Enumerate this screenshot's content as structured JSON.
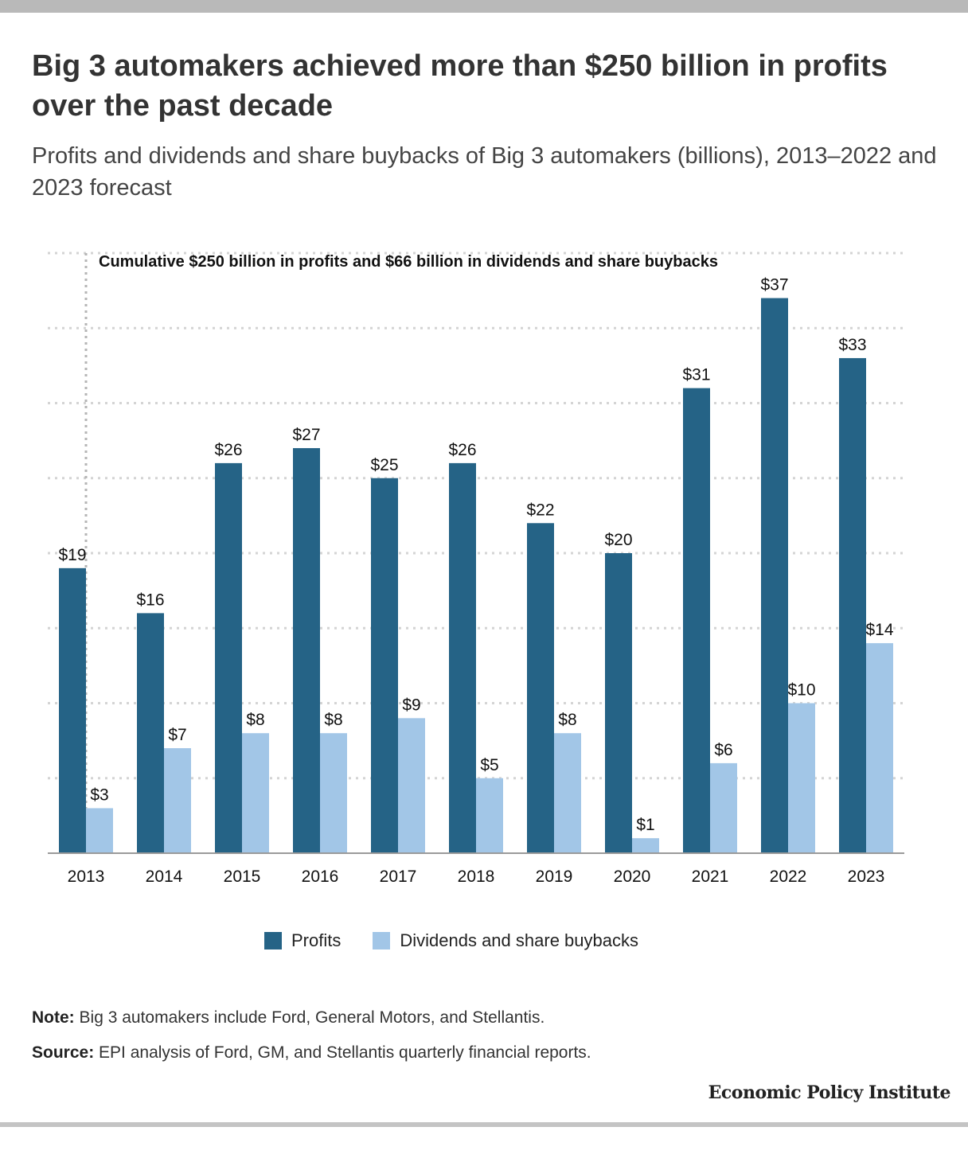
{
  "header": {
    "title": "Big 3 automakers achieved more than $250 billion in profits over the past decade",
    "subtitle": "Profits and dividends and share buybacks of Big 3 automakers (billions), 2013–2022 and 2023 forecast"
  },
  "chart_data": {
    "type": "bar",
    "title": "Big 3 automakers achieved more than $250 billion in profits over the past decade",
    "subtitle": "Profits and dividends and share buybacks of Big 3 automakers (billions), 2013–2022 and 2023 forecast",
    "categories": [
      "2013",
      "2014",
      "2015",
      "2016",
      "2017",
      "2018",
      "2019",
      "2020",
      "2021",
      "2022",
      "2023"
    ],
    "series": [
      {
        "name": "Profits",
        "color": "#256386",
        "values": [
          19,
          16,
          26,
          27,
          25,
          26,
          22,
          20,
          31,
          37,
          33
        ],
        "labels": [
          "$19",
          "$16",
          "$26",
          "$27",
          "$25",
          "$26",
          "$22",
          "$20",
          "$31",
          "$37",
          "$33"
        ]
      },
      {
        "name": "Dividends and share buybacks",
        "color": "#a2c6e7",
        "values": [
          3,
          7,
          8,
          8,
          9,
          5,
          8,
          1,
          6,
          10,
          14
        ],
        "labels": [
          "$3",
          "$7",
          "$8",
          "$8",
          "$9",
          "$5",
          "$8",
          "$1",
          "$6",
          "$10",
          "$14"
        ]
      }
    ],
    "ylim": [
      0,
      40
    ],
    "grid": true,
    "legend_position": "bottom",
    "annotation": "Cumulative $250 billion in profits and $66 billion in dividends and share buybacks"
  },
  "footer": {
    "note_label": "Note:",
    "note_text": "Big 3 automakers include Ford, General Motors, and Stellantis.",
    "source_label": "Source:",
    "source_text": "EPI analysis of Ford, GM, and Stellantis quarterly financial reports.",
    "brand": "Economic Policy Institute"
  }
}
